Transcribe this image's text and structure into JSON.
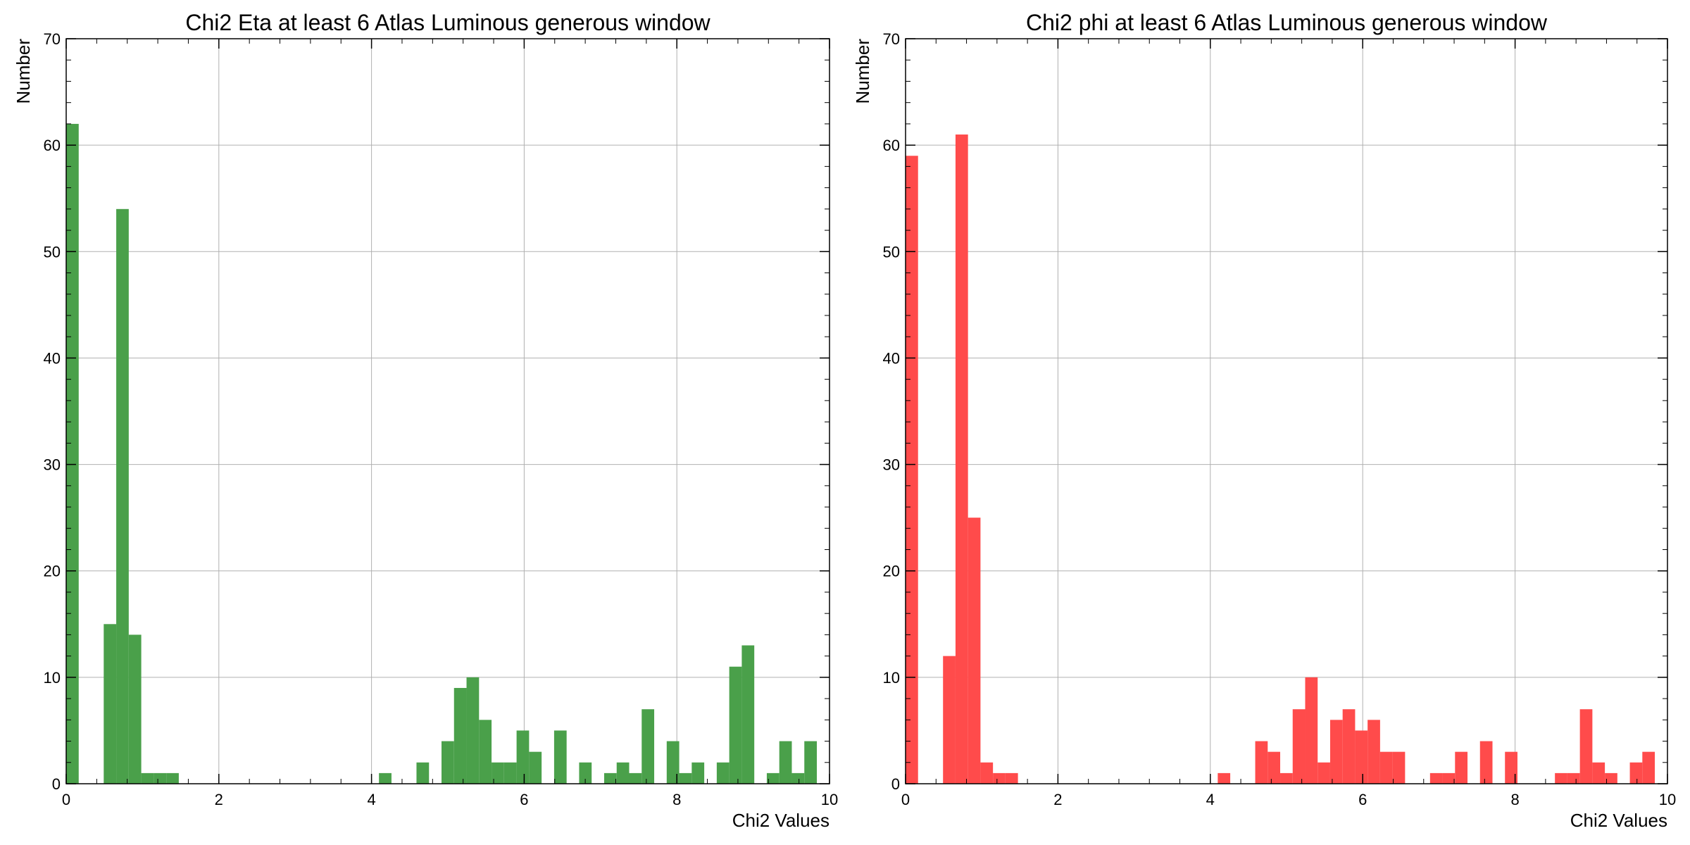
{
  "chart_data": [
    {
      "type": "bar",
      "title": "Chi2 Eta at least 6 Atlas Luminous generous window",
      "xlabel": "Chi2 Values",
      "ylabel": "Number",
      "xlim": [
        0,
        10
      ],
      "ylim": [
        0,
        70
      ],
      "xticks": [
        "0",
        "2",
        "4",
        "6",
        "8",
        "10"
      ],
      "yticks": [
        "0",
        "10",
        "20",
        "30",
        "40",
        "50",
        "60",
        "70"
      ],
      "grid": true,
      "color": "#4aa04a",
      "bin_width": 0.1639,
      "counts": [
        62,
        0,
        0,
        15,
        54,
        14,
        1,
        1,
        1,
        0,
        0,
        0,
        0,
        0,
        0,
        0,
        0,
        0,
        0,
        0,
        0,
        0,
        0,
        0,
        0,
        1,
        0,
        0,
        2,
        0,
        4,
        9,
        10,
        6,
        2,
        2,
        5,
        3,
        0,
        5,
        0,
        2,
        0,
        1,
        2,
        1,
        7,
        0,
        4,
        1,
        2,
        0,
        2,
        11,
        13,
        0,
        1,
        4,
        1,
        4
      ]
    },
    {
      "type": "bar",
      "title": "Chi2 phi at least 6 Atlas Luminous generous window",
      "xlabel": "Chi2 Values",
      "ylabel": "Number",
      "xlim": [
        0,
        10
      ],
      "ylim": [
        0,
        70
      ],
      "xticks": [
        "0",
        "2",
        "4",
        "6",
        "8",
        "10"
      ],
      "yticks": [
        "0",
        "10",
        "20",
        "30",
        "40",
        "50",
        "60",
        "70"
      ],
      "grid": true,
      "color": "#ff4b4b",
      "bin_width": 0.1639,
      "counts": [
        59,
        0,
        0,
        12,
        61,
        25,
        2,
        1,
        1,
        0,
        0,
        0,
        0,
        0,
        0,
        0,
        0,
        0,
        0,
        0,
        0,
        0,
        0,
        0,
        0,
        1,
        0,
        0,
        4,
        3,
        1,
        7,
        10,
        2,
        6,
        7,
        5,
        6,
        3,
        3,
        0,
        0,
        1,
        1,
        3,
        0,
        4,
        0,
        3,
        0,
        0,
        0,
        1,
        1,
        7,
        2,
        1,
        0,
        2,
        3
      ]
    }
  ]
}
